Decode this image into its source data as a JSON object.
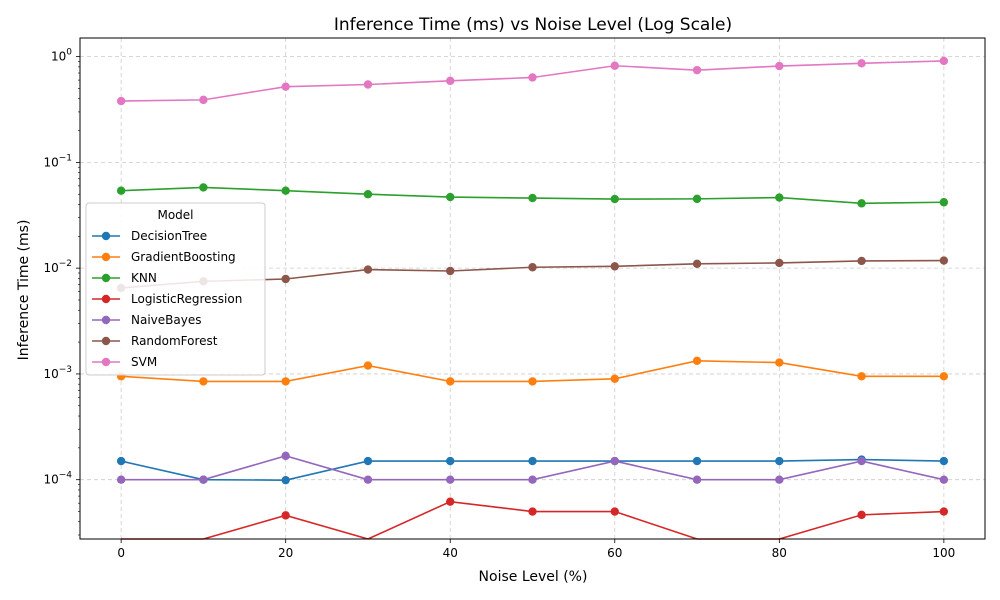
{
  "chart_data": {
    "type": "line",
    "title": "Inference Time (ms) vs Noise Level (Log Scale)",
    "xlabel": "Noise Level (%)",
    "ylabel": "Inference Time (ms)",
    "x": [
      0,
      10,
      20,
      30,
      40,
      50,
      60,
      70,
      80,
      90,
      100
    ],
    "xlim": [
      -5,
      105
    ],
    "xticks": [
      0,
      20,
      40,
      60,
      80,
      100
    ],
    "yscale": "log",
    "ylim": [
      2.75e-05,
      1.5
    ],
    "yticks": [
      {
        "value": 0.0001,
        "base": "10",
        "exp": "−4"
      },
      {
        "value": 0.001,
        "base": "10",
        "exp": "−3"
      },
      {
        "value": 0.01,
        "base": "10",
        "exp": "−2"
      },
      {
        "value": 0.1,
        "base": "10",
        "exp": "−1"
      },
      {
        "value": 1,
        "base": "10",
        "exp": "0"
      }
    ],
    "grid": true,
    "legend": {
      "title": "Model",
      "position": "center-left"
    },
    "series": [
      {
        "name": "DecisionTree",
        "color": "#1f77b4",
        "values": [
          0.00015,
          0.0001,
          9.9e-05,
          0.00015,
          0.00015,
          0.00015,
          0.00015,
          0.00015,
          0.00015,
          0.000155,
          0.00015
        ]
      },
      {
        "name": "GradientBoosting",
        "color": "#ff7f0e",
        "values": [
          0.00095,
          0.00085,
          0.00085,
          0.0012,
          0.00085,
          0.00085,
          0.0009,
          0.00133,
          0.00128,
          0.00095,
          0.00095
        ]
      },
      {
        "name": "KNN",
        "color": "#2ca02c",
        "values": [
          0.054,
          0.058,
          0.054,
          0.05,
          0.047,
          0.046,
          0.045,
          0.0452,
          0.0465,
          0.041,
          0.042
        ]
      },
      {
        "name": "LogisticRegression",
        "color": "#d62728",
        "values": [
          0,
          0,
          4.6e-05,
          0,
          6.2e-05,
          5e-05,
          5e-05,
          0,
          0,
          4.65e-05,
          5e-05
        ]
      },
      {
        "name": "NaiveBayes",
        "color": "#9467bd",
        "values": [
          0.0001,
          0.0001,
          0.000168,
          0.0001,
          0.0001,
          0.0001,
          0.00015,
          0.0001,
          0.0001,
          0.00015,
          0.0001
        ]
      },
      {
        "name": "RandomForest",
        "color": "#8c564b",
        "values": [
          0.0065,
          0.0075,
          0.0079,
          0.0097,
          0.0094,
          0.0102,
          0.0104,
          0.011,
          0.0112,
          0.0117,
          0.0118
        ]
      },
      {
        "name": "SVM",
        "color": "#e377c2",
        "values": [
          0.38,
          0.39,
          0.52,
          0.545,
          0.59,
          0.635,
          0.82,
          0.745,
          0.815,
          0.865,
          0.91
        ]
      }
    ]
  }
}
